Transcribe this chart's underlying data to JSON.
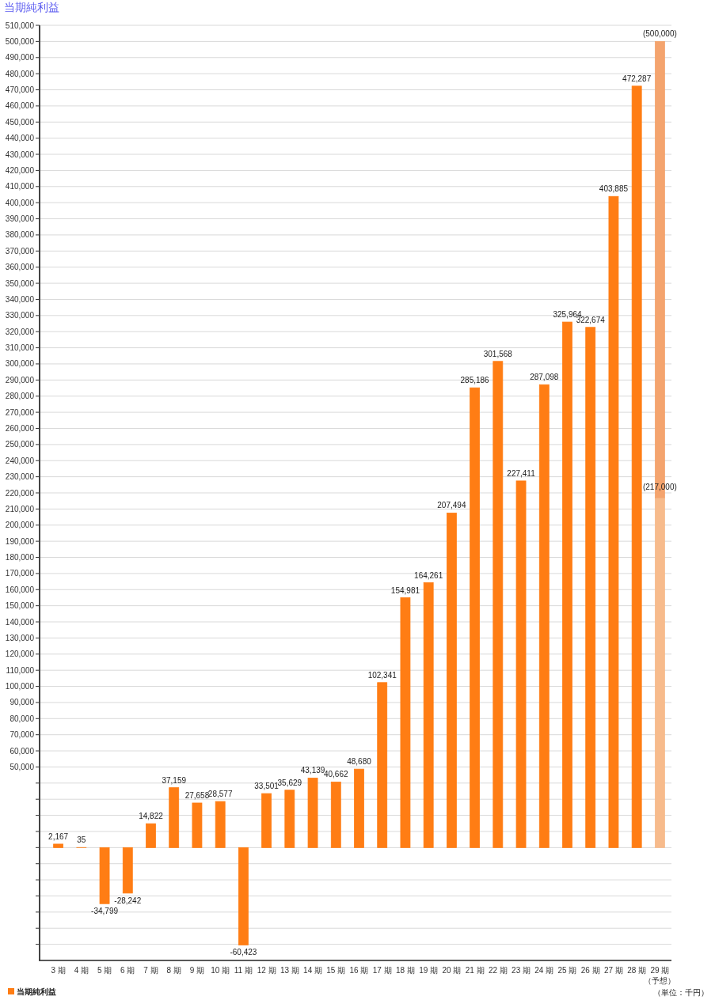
{
  "chart_data": {
    "type": "bar",
    "title": "当期純利益",
    "categories": [
      "3 期",
      "4 期",
      "5 期",
      "6 期",
      "7 期",
      "8 期",
      "9 期",
      "10 期",
      "11 期",
      "12 期",
      "13 期",
      "14 期",
      "15 期",
      "16 期",
      "17 期",
      "18 期",
      "19 期",
      "20 期",
      "21 期",
      "22 期",
      "23 期",
      "24 期",
      "25 期",
      "26 期",
      "27 期",
      "28 期",
      "29 期（予想）"
    ],
    "series": [
      {
        "name": "当期純利益",
        "color": "#ff7d14",
        "colors": [
          "#ff7d14",
          "#ff7d14",
          "#ff7d14",
          "#ff7d14",
          "#ff7d14",
          "#ff7d14",
          "#ff7d14",
          "#ff7d14",
          "#ff7d14",
          "#ff7d14",
          "#ff7d14",
          "#ff7d14",
          "#ff7d14",
          "#ff7d14",
          "#ff7d14",
          "#ff7d14",
          "#ff7d14",
          "#ff7d14",
          "#ff7d14",
          "#ff7d14",
          "#ff7d14",
          "#ff7d14",
          "#ff7d14",
          "#ff7d14",
          "#ff7d14",
          "#ff7d14",
          "#f7bb8c"
        ],
        "values": [
          2167,
          35,
          -34799,
          -28242,
          14822,
          37159,
          27658,
          28577,
          -60423,
          33501,
          35629,
          43139,
          40662,
          48680,
          102341,
          154981,
          164261,
          207494,
          285186,
          301568,
          227411,
          287098,
          325964,
          322674,
          403885,
          472287,
          217000
        ],
        "value_labels": [
          "2,167",
          "35",
          "-34,799",
          "-28,242",
          "14,822",
          "37,159",
          "27,658",
          "28,577",
          "-60,423",
          "33,501",
          "35,629",
          "43,139",
          "40,662",
          "48,680",
          "102,341",
          "154,981",
          "164,261",
          "207,494",
          "285,186",
          "301,568",
          "227,411",
          "287,098",
          "325,964",
          "322,674",
          "403,885",
          "472,287",
          "(217,000)"
        ]
      },
      {
        "color": "#f4a46e",
        "values": [
          null,
          null,
          null,
          null,
          null,
          null,
          null,
          null,
          null,
          null,
          null,
          null,
          null,
          null,
          null,
          null,
          null,
          null,
          null,
          null,
          null,
          null,
          null,
          null,
          null,
          null,
          283000
        ]
      }
    ],
    "stacked": true,
    "totals": [
      null,
      null,
      null,
      null,
      null,
      null,
      null,
      null,
      null,
      null,
      null,
      null,
      null,
      null,
      null,
      null,
      null,
      null,
      null,
      null,
      null,
      null,
      null,
      null,
      null,
      null,
      "(500,000)"
    ],
    "ylim": [
      -70000,
      510000
    ],
    "yticks": [
      {
        "value": -60000,
        "label": null
      },
      {
        "value": -50000,
        "label": null
      },
      {
        "value": -40000,
        "label": null
      },
      {
        "value": -30000,
        "label": null
      },
      {
        "value": -20000,
        "label": null
      },
      {
        "value": -10000,
        "label": null
      },
      {
        "value": 0,
        "label": null
      },
      {
        "value": 10000,
        "label": null
      },
      {
        "value": 20000,
        "label": null
      },
      {
        "value": 30000,
        "label": null
      },
      {
        "value": 40000,
        "label": null
      },
      {
        "value": 50000,
        "label": "50,000"
      },
      {
        "value": 60000,
        "label": "60,000"
      },
      {
        "value": 70000,
        "label": "70,000"
      },
      {
        "value": 80000,
        "label": "80,000"
      },
      {
        "value": 90000,
        "label": "90,000"
      },
      {
        "value": 100000,
        "label": "100,000"
      },
      {
        "value": 110000,
        "label": "110,000"
      },
      {
        "value": 120000,
        "label": "120,000"
      },
      {
        "value": 130000,
        "label": "130,000"
      },
      {
        "value": 140000,
        "label": "140,000"
      },
      {
        "value": 150000,
        "label": "150,000"
      },
      {
        "value": 160000,
        "label": "160,000"
      },
      {
        "value": 170000,
        "label": "170,000"
      },
      {
        "value": 180000,
        "label": "180,000"
      },
      {
        "value": 190000,
        "label": "190,000"
      },
      {
        "value": 200000,
        "label": "200,000"
      },
      {
        "value": 210000,
        "label": "210,000"
      },
      {
        "value": 220000,
        "label": "220,000"
      },
      {
        "value": 230000,
        "label": "230,000"
      },
      {
        "value": 240000,
        "label": "240,000"
      },
      {
        "value": 250000,
        "label": "250,000"
      },
      {
        "value": 260000,
        "label": "260,000"
      },
      {
        "value": 270000,
        "label": "270,000"
      },
      {
        "value": 280000,
        "label": "280,000"
      },
      {
        "value": 290000,
        "label": "290,000"
      },
      {
        "value": 300000,
        "label": "300,000"
      },
      {
        "value": 310000,
        "label": "310,000"
      },
      {
        "value": 320000,
        "label": "320,000"
      },
      {
        "value": 330000,
        "label": "330,000"
      },
      {
        "value": 340000,
        "label": "340,000"
      },
      {
        "value": 350000,
        "label": "350,000"
      },
      {
        "value": 360000,
        "label": "360,000"
      },
      {
        "value": 370000,
        "label": "370,000"
      },
      {
        "value": 380000,
        "label": "380,000"
      },
      {
        "value": 390000,
        "label": "390,000"
      },
      {
        "value": 400000,
        "label": "400,000"
      },
      {
        "value": 410000,
        "label": "410,000"
      },
      {
        "value": 420000,
        "label": "420,000"
      },
      {
        "value": 430000,
        "label": "430,000"
      },
      {
        "value": 440000,
        "label": "440,000"
      },
      {
        "value": 450000,
        "label": "450,000"
      },
      {
        "value": 460000,
        "label": "460,000"
      },
      {
        "value": 470000,
        "label": "470,000"
      },
      {
        "value": 480000,
        "label": "480,000"
      },
      {
        "value": 490000,
        "label": "490,000"
      },
      {
        "value": 500000,
        "label": "500,000"
      },
      {
        "value": 510000,
        "label": "510,000"
      }
    ],
    "grid": "y",
    "legend": "bottom left",
    "annotations": [
      "（単位：千円）"
    ]
  }
}
